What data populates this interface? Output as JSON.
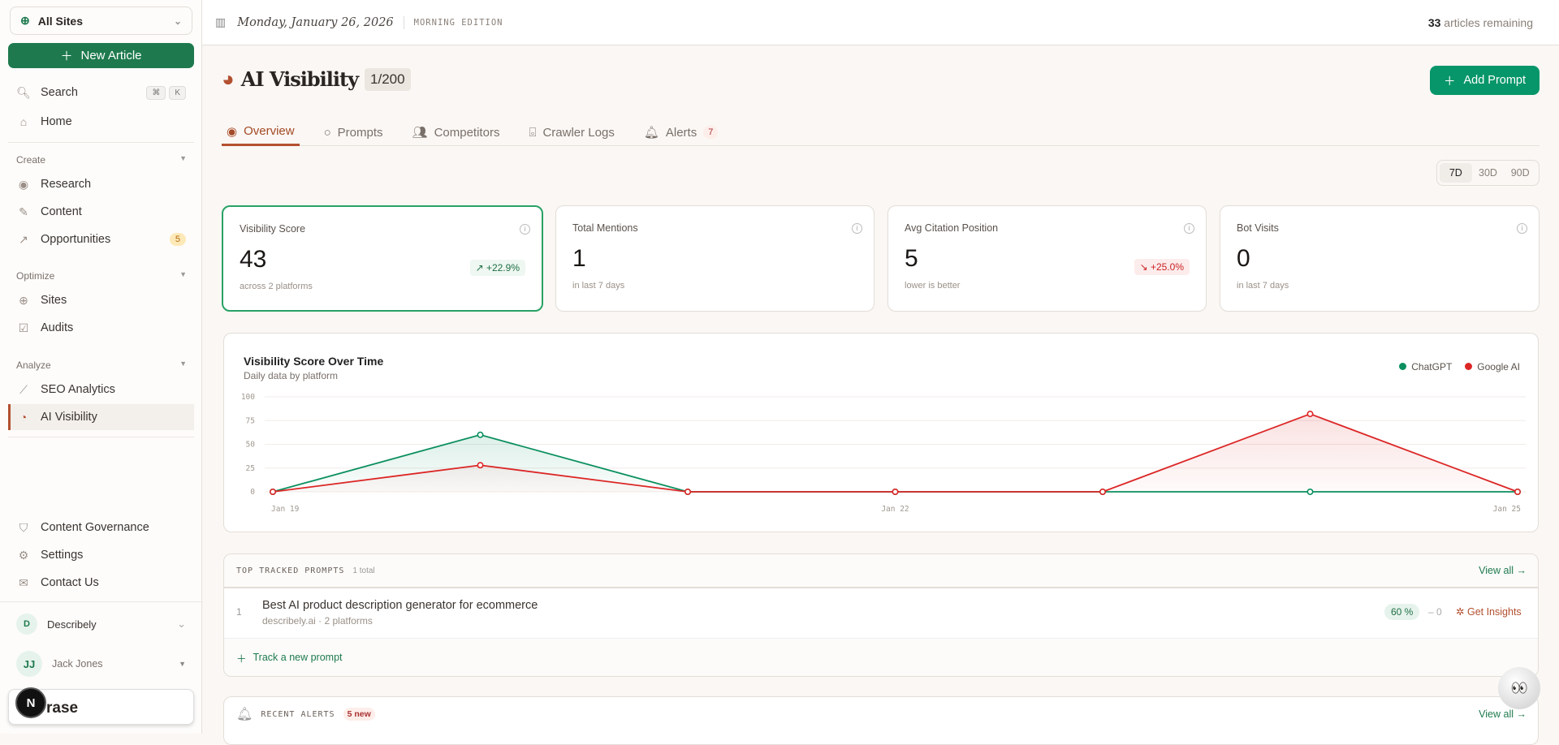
{
  "sidebar": {
    "site_selector": "All Sites",
    "new_article": "New Article",
    "search": "Search",
    "search_keys": [
      "⌘",
      "K"
    ],
    "home": "Home",
    "sections": [
      {
        "label": "Create",
        "items": [
          {
            "label": "Research"
          },
          {
            "label": "Content"
          },
          {
            "label": "Opportunities",
            "badge": "5"
          }
        ]
      },
      {
        "label": "Optimize",
        "items": [
          {
            "label": "Sites"
          },
          {
            "label": "Audits"
          }
        ]
      },
      {
        "label": "Analyze",
        "items": [
          {
            "label": "SEO Analytics"
          },
          {
            "label": "AI Visibility"
          }
        ]
      }
    ],
    "bottom": [
      "Content Governance",
      "Settings",
      "Contact Us"
    ],
    "workspace": {
      "initial": "D",
      "name": "Describely"
    },
    "user": {
      "initials": "JJ",
      "name": "Jack Jones"
    },
    "erase_label": "rase",
    "n_button": "N"
  },
  "topbar": {
    "date": "Monday, January 26, 2026",
    "edition": "MORNING EDITION",
    "remaining_count": "33",
    "remaining_label": "articles remaining"
  },
  "page": {
    "title": "AI Visibility",
    "count": "1/200",
    "add_prompt": "Add Prompt",
    "tabs": [
      {
        "label": "Overview"
      },
      {
        "label": "Prompts"
      },
      {
        "label": "Competitors"
      },
      {
        "label": "Crawler Logs"
      },
      {
        "label": "Alerts",
        "badge": "7"
      }
    ],
    "ranges": [
      "7D",
      "30D",
      "90D"
    ],
    "selected_range": "7D"
  },
  "metrics": [
    {
      "label": "Visibility Score",
      "value": "43",
      "sub": "across 2 platforms",
      "delta": "+22.9%",
      "trend": "up"
    },
    {
      "label": "Total Mentions",
      "value": "1",
      "sub": "in last 7 days"
    },
    {
      "label": "Avg Citation Position",
      "value": "5",
      "sub": "lower is better",
      "delta": "+25.0%",
      "trend": "down"
    },
    {
      "label": "Bot Visits",
      "value": "0",
      "sub": "in last 7 days"
    }
  ],
  "chart_data": {
    "type": "area",
    "title": "Visibility Score Over Time",
    "subtitle": "Daily data by platform",
    "x": [
      "Jan 19",
      "Jan 20",
      "Jan 21",
      "Jan 22",
      "Jan 23",
      "Jan 24",
      "Jan 25"
    ],
    "x_tick_labels": [
      "Jan 19",
      "Jan 22",
      "Jan 25"
    ],
    "yticks": [
      0,
      25,
      50,
      75,
      100
    ],
    "ylim": [
      0,
      100
    ],
    "grid": true,
    "legend": "top-right",
    "series": [
      {
        "name": "ChatGPT",
        "color": "#0a8f5e",
        "values": [
          0,
          60,
          0,
          0,
          0,
          0,
          0
        ]
      },
      {
        "name": "Google AI",
        "color": "#dc2626",
        "values": [
          0,
          28,
          0,
          0,
          0,
          82,
          0
        ]
      }
    ]
  },
  "prompts": {
    "heading": "TOP TRACKED PROMPTS",
    "total": "1 total",
    "view_all": "View all →",
    "rows": [
      {
        "rank": "1",
        "text": "Best AI product description generator for ecommerce",
        "meta": "describely.ai · 2 platforms",
        "score": "60 %",
        "change": "– 0",
        "action": "Get Insights"
      }
    ],
    "track_new": "Track a new prompt"
  },
  "alerts": {
    "heading": "RECENT ALERTS",
    "badge": "5 new",
    "view_all": "View all →"
  }
}
